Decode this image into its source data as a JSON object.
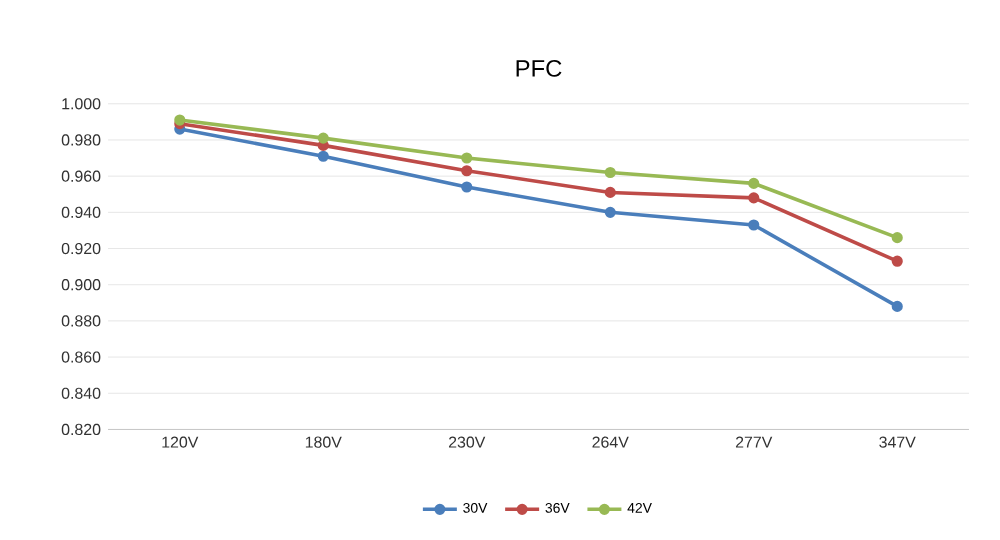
{
  "chart_data": {
    "type": "line",
    "title": "PFC",
    "categories": [
      "120V",
      "180V",
      "230V",
      "264V",
      "277V",
      "347V"
    ],
    "series": [
      {
        "name": "30V",
        "color": "#4a7ebb",
        "values": [
          0.986,
          0.971,
          0.954,
          0.94,
          0.933,
          0.888
        ]
      },
      {
        "name": "36V",
        "color": "#be4b48",
        "values": [
          0.989,
          0.977,
          0.963,
          0.951,
          0.948,
          0.913
        ]
      },
      {
        "name": "42V",
        "color": "#98b954",
        "values": [
          0.991,
          0.981,
          0.97,
          0.962,
          0.956,
          0.926
        ]
      }
    ],
    "ylim": [
      0.82,
      1.0
    ],
    "yticks": [
      {
        "value": 0.82,
        "label": "0.820"
      },
      {
        "value": 0.84,
        "label": "0.840"
      },
      {
        "value": 0.86,
        "label": "0.860"
      },
      {
        "value": 0.88,
        "label": "0.880"
      },
      {
        "value": 0.9,
        "label": "0.900"
      },
      {
        "value": 0.92,
        "label": "0.920"
      },
      {
        "value": 0.94,
        "label": "0.940"
      },
      {
        "value": 0.96,
        "label": "0.960"
      },
      {
        "value": 0.98,
        "label": "0.980"
      },
      {
        "value": 1.0,
        "label": "1.000"
      }
    ],
    "grid": "y",
    "legend": "bottom",
    "marker": "circle",
    "line_style": "solid"
  }
}
